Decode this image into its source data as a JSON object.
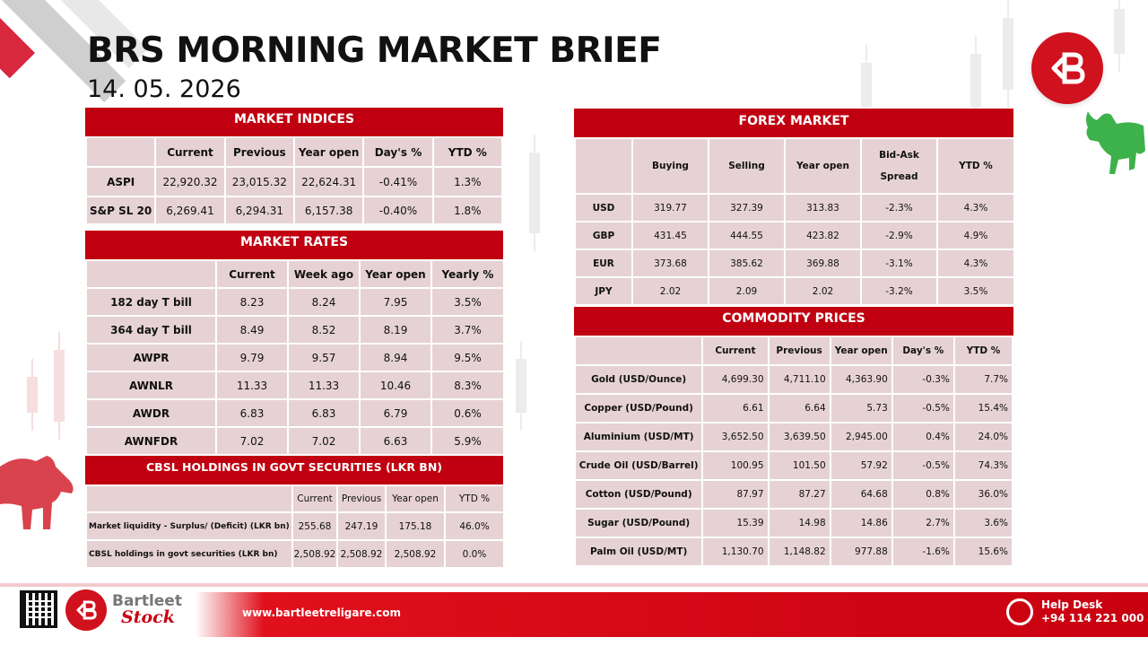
{
  "header": {
    "title": "BRS MORNING MARKET BRIEF",
    "date": "14. 05. 2026"
  },
  "colors": {
    "accent": "#c00010",
    "cell_bg": "#e6d2d4"
  },
  "market_indices": {
    "title": "MARKET INDICES",
    "columns": [
      "",
      "Current",
      "Previous",
      "Year open",
      "Day's %",
      "YTD %"
    ],
    "rows": [
      [
        "ASPI",
        "22,920.32",
        "23,015.32",
        "22,624.31",
        "-0.41%",
        "1.3%"
      ],
      [
        "S&P SL 20",
        "6,269.41",
        "6,294.31",
        "6,157.38",
        "-0.40%",
        "1.8%"
      ]
    ]
  },
  "market_rates": {
    "title": "MARKET RATES",
    "columns": [
      "",
      "Current",
      "Week ago",
      "Year open",
      "Yearly %"
    ],
    "rows": [
      [
        "182 day T bill",
        "8.23",
        "8.24",
        "7.95",
        "3.5%"
      ],
      [
        "364 day T bill",
        "8.49",
        "8.52",
        "8.19",
        "3.7%"
      ],
      [
        "AWPR",
        "9.79",
        "9.57",
        "8.94",
        "9.5%"
      ],
      [
        "AWNLR",
        "11.33",
        "11.33",
        "10.46",
        "8.3%"
      ],
      [
        "AWDR",
        "6.83",
        "6.83",
        "6.79",
        "0.6%"
      ],
      [
        "AWNFDR",
        "7.02",
        "7.02",
        "6.63",
        "5.9%"
      ]
    ]
  },
  "cbsl_holdings": {
    "title": "CBSL HOLDINGS IN GOVT SECURITIES (LKR BN)",
    "columns": [
      "",
      "Current",
      "Previous",
      "Year open",
      "YTD %"
    ],
    "rows": [
      [
        "Market liquidity - Surplus/ (Deficit) (LKR bn)",
        "255.68",
        "247.19",
        "175.18",
        "46.0%"
      ],
      [
        "CBSL holdings in govt securities (LKR bn)",
        "2,508.92",
        "2,508.92",
        "2,508.92",
        "0.0%"
      ]
    ]
  },
  "forex_market": {
    "title": "FOREX MARKET",
    "columns": [
      "",
      "Buying",
      "Selling",
      "Year open",
      "Bid-Ask Spread",
      "YTD %"
    ],
    "rows": [
      [
        "USD",
        "319.77",
        "327.39",
        "313.83",
        "-2.3%",
        "4.3%"
      ],
      [
        "GBP",
        "431.45",
        "444.55",
        "423.82",
        "-2.9%",
        "4.9%"
      ],
      [
        "EUR",
        "373.68",
        "385.62",
        "369.88",
        "-3.1%",
        "4.3%"
      ],
      [
        "JPY",
        "2.02",
        "2.09",
        "2.02",
        "-3.2%",
        "3.5%"
      ]
    ]
  },
  "commodity_prices": {
    "title": "COMMODITY PRICES",
    "columns": [
      "",
      "Current",
      "Previous",
      "Year open",
      "Day's %",
      "YTD %"
    ],
    "rows": [
      [
        "Gold (USD/Ounce)",
        "4,699.30",
        "4,711.10",
        "4,363.90",
        "-0.3%",
        "7.7%"
      ],
      [
        "Copper (USD/Pound)",
        "6.61",
        "6.64",
        "5.73",
        "-0.5%",
        "15.4%"
      ],
      [
        "Aluminium (USD/MT)",
        "3,652.50",
        "3,639.50",
        "2,945.00",
        "0.4%",
        "24.0%"
      ],
      [
        "Crude Oil (USD/Barrel)",
        "100.95",
        "101.50",
        "57.92",
        "-0.5%",
        "74.3%"
      ],
      [
        "Cotton (USD/Pound)",
        "87.97",
        "87.27",
        "64.68",
        "0.8%",
        "36.0%"
      ],
      [
        "Sugar (USD/Pound)",
        "15.39",
        "14.98",
        "14.86",
        "2.7%",
        "3.6%"
      ],
      [
        "Palm Oil (USD/MT)",
        "1,130.70",
        "1,148.82",
        "977.88",
        "-1.6%",
        "15.6%"
      ]
    ]
  },
  "footer": {
    "brand_name": "Bartleet",
    "brand_sub": "Stock",
    "website": "www.bartleetreligare.com",
    "help_label": "Help Desk",
    "help_phone": "+94 114 221 000"
  }
}
